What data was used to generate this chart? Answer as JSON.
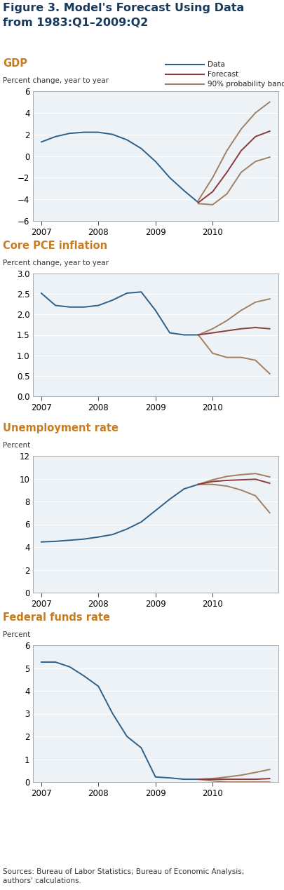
{
  "title_line1": "Figure 3. Model's Forecast Using Data",
  "title_line2": "from 1983:Q1–2009:Q2",
  "title_color": "#1a3a5c",
  "title_fontsize": 11.5,
  "legend_labels": [
    "Data",
    "Forecast",
    "90% probability band"
  ],
  "legend_colors": [
    "#2c5f8a",
    "#8b3a3a",
    "#a08060"
  ],
  "panels": [
    {
      "title": "GDP",
      "ylabel": "Percent change, year to year",
      "title_color": "#c87c20",
      "ylim": [
        -6,
        6
      ],
      "yticks": [
        -6,
        -4,
        -2,
        0,
        2,
        4,
        6
      ],
      "xticks": [
        2007,
        2008,
        2009,
        2010
      ],
      "data_x": [
        2007.0,
        2007.25,
        2007.5,
        2007.75,
        2008.0,
        2008.25,
        2008.5,
        2008.75,
        2009.0,
        2009.25,
        2009.5,
        2009.75
      ],
      "data_y": [
        1.3,
        1.8,
        2.1,
        2.2,
        2.2,
        2.0,
        1.5,
        0.7,
        -0.5,
        -2.0,
        -3.2,
        -4.3
      ],
      "forecast_x": [
        2009.75,
        2010.0,
        2010.25,
        2010.5,
        2010.75,
        2011.0
      ],
      "forecast_y": [
        -4.3,
        -3.3,
        -1.5,
        0.5,
        1.8,
        2.3
      ],
      "upper_x": [
        2009.75,
        2010.0,
        2010.25,
        2010.5,
        2010.75,
        2011.0
      ],
      "upper_y": [
        -4.1,
        -2.0,
        0.5,
        2.5,
        4.0,
        5.0
      ],
      "lower_x": [
        2009.75,
        2010.0,
        2010.25,
        2010.5,
        2010.75,
        2011.0
      ],
      "lower_y": [
        -4.4,
        -4.5,
        -3.5,
        -1.5,
        -0.5,
        -0.1
      ]
    },
    {
      "title": "Core PCE inflation",
      "ylabel": "Percent change, year to year",
      "title_color": "#c87c20",
      "ylim": [
        0,
        3.0
      ],
      "yticks": [
        0,
        0.5,
        1.0,
        1.5,
        2.0,
        2.5,
        3.0
      ],
      "xticks": [
        2007,
        2008,
        2009,
        2010
      ],
      "data_x": [
        2007.0,
        2007.25,
        2007.5,
        2007.75,
        2008.0,
        2008.25,
        2008.5,
        2008.75,
        2008.75,
        2009.0,
        2009.25,
        2009.5,
        2009.75
      ],
      "data_y": [
        2.52,
        2.22,
        2.18,
        2.18,
        2.22,
        2.35,
        2.52,
        2.55,
        2.55,
        2.1,
        1.55,
        1.5,
        1.5
      ],
      "forecast_x": [
        2009.75,
        2010.0,
        2010.25,
        2010.5,
        2010.75,
        2011.0
      ],
      "forecast_y": [
        1.5,
        1.55,
        1.6,
        1.65,
        1.68,
        1.65
      ],
      "upper_x": [
        2009.75,
        2010.0,
        2010.25,
        2010.5,
        2010.75,
        2011.0
      ],
      "upper_y": [
        1.5,
        1.65,
        1.85,
        2.1,
        2.3,
        2.38
      ],
      "lower_x": [
        2009.75,
        2010.0,
        2010.25,
        2010.5,
        2010.75,
        2011.0
      ],
      "lower_y": [
        1.5,
        1.05,
        0.95,
        0.95,
        0.88,
        0.55
      ]
    },
    {
      "title": "Unemployment rate",
      "ylabel": "Percent",
      "title_color": "#c87c20",
      "ylim": [
        0,
        12
      ],
      "yticks": [
        0,
        2,
        4,
        6,
        8,
        10,
        12
      ],
      "xticks": [
        2007,
        2008,
        2009,
        2010
      ],
      "data_x": [
        2007.0,
        2007.25,
        2007.5,
        2007.75,
        2008.0,
        2008.25,
        2008.5,
        2008.75,
        2009.0,
        2009.25,
        2009.5,
        2009.75
      ],
      "data_y": [
        4.45,
        4.5,
        4.6,
        4.7,
        4.88,
        5.1,
        5.58,
        6.2,
        7.2,
        8.2,
        9.1,
        9.5
      ],
      "forecast_x": [
        2009.75,
        2010.0,
        2010.25,
        2010.5,
        2010.75,
        2011.0
      ],
      "forecast_y": [
        9.5,
        9.75,
        9.85,
        9.9,
        9.95,
        9.6
      ],
      "upper_x": [
        2009.75,
        2010.0,
        2010.25,
        2010.5,
        2010.75,
        2011.0
      ],
      "upper_y": [
        9.5,
        9.9,
        10.2,
        10.35,
        10.45,
        10.15
      ],
      "lower_x": [
        2009.75,
        2010.0,
        2010.25,
        2010.5,
        2010.75,
        2011.0
      ],
      "lower_y": [
        9.5,
        9.5,
        9.35,
        9.0,
        8.5,
        7.0
      ]
    },
    {
      "title": "Federal funds rate",
      "ylabel": "Percent",
      "title_color": "#c87c20",
      "ylim": [
        0,
        6
      ],
      "yticks": [
        0,
        1,
        2,
        3,
        4,
        5,
        6
      ],
      "xticks": [
        2007,
        2008,
        2009,
        2010
      ],
      "data_x": [
        2007.0,
        2007.25,
        2007.5,
        2007.75,
        2008.0,
        2008.25,
        2008.5,
        2008.75,
        2009.0,
        2009.25,
        2009.5,
        2009.75
      ],
      "data_y": [
        5.26,
        5.26,
        5.05,
        4.65,
        4.2,
        3.0,
        2.0,
        1.5,
        0.22,
        0.18,
        0.12,
        0.12
      ],
      "forecast_x": [
        2009.75,
        2010.0,
        2010.25,
        2010.5,
        2010.75,
        2011.0
      ],
      "forecast_y": [
        0.12,
        0.12,
        0.12,
        0.12,
        0.12,
        0.15
      ],
      "upper_x": [
        2009.75,
        2010.0,
        2010.25,
        2010.5,
        2010.75,
        2011.0
      ],
      "upper_y": [
        0.12,
        0.15,
        0.22,
        0.3,
        0.42,
        0.55
      ],
      "lower_x": [
        2009.75,
        2010.0,
        2010.25,
        2010.5,
        2010.75,
        2011.0
      ],
      "lower_y": [
        0.12,
        0.05,
        0.0,
        0.0,
        0.0,
        0.0
      ]
    }
  ],
  "source_text": "Sources: Bureau of Labor Statistics; Bureau of Economic Analysis;\nauthors' calculations.",
  "data_color": "#2c5f8a",
  "forecast_color": "#8b3a3a",
  "band_color": "#a08060",
  "plot_bg": "#edf2f7",
  "grid_color": "#ffffff",
  "xmin": 2006.85,
  "xmax": 2011.15
}
